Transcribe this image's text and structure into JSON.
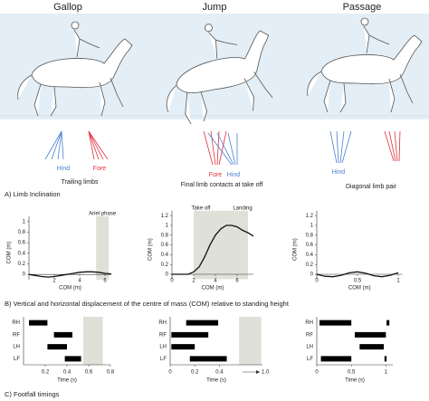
{
  "columns": [
    "Gallop",
    "Jump",
    "Passage"
  ],
  "limb_labels": {
    "gallop_hind": "Hind",
    "gallop_fore": "Fore",
    "gallop_caption": "Trailing limbs",
    "jump_fore": "Fore",
    "jump_hind": "Hind",
    "jump_caption": "Final limb contacts at take off",
    "passage_hind": "Hind",
    "passage_caption": "Diagonal limb pair"
  },
  "sections": [
    "A) Limb Inclination",
    "B) Vertical and horizontal displacement of the centre of mass (COM) relative to standing height",
    "C) Footfall timings"
  ],
  "chart_data": [
    {
      "type": "line",
      "ylabel": "COM (m)",
      "xlabel": "COM (m)",
      "color": "#111111",
      "x": [
        0,
        0.5,
        1,
        1.5,
        2,
        2.5,
        3,
        3.5,
        4,
        4.5,
        5,
        5.5,
        6,
        6.5
      ],
      "values": [
        0,
        -0.02,
        -0.04,
        -0.05,
        -0.04,
        -0.02,
        0,
        0.02,
        0.04,
        0.05,
        0.05,
        0.04,
        0.02,
        0.01
      ],
      "xlim": [
        0,
        6.5
      ],
      "xticks": [
        2,
        4,
        6
      ],
      "ylim": [
        -0.1,
        1.1
      ],
      "yticks": [
        0,
        0.2,
        0.4,
        0.6,
        0.8,
        1
      ],
      "shade": [
        5.3,
        6.3
      ],
      "shade_color": "#dfe0d8",
      "annotations": [
        "Ariel phase"
      ]
    },
    {
      "type": "line",
      "ylabel": "COM (m)",
      "xlabel": "COM (m)",
      "color": "#111111",
      "x": [
        0,
        0.5,
        1,
        1.5,
        2,
        2.5,
        3,
        3.5,
        4,
        4.5,
        5,
        5.5,
        6,
        6.5,
        7,
        7.5
      ],
      "values": [
        0,
        0,
        0,
        0,
        0.05,
        0.15,
        0.35,
        0.6,
        0.8,
        0.93,
        1.0,
        1.0,
        0.97,
        0.9,
        0.85,
        0.78
      ],
      "xlim": [
        0,
        7.5
      ],
      "xticks": [
        0,
        2,
        4,
        6
      ],
      "ylim": [
        -0.1,
        1.3
      ],
      "yticks": [
        0,
        0.2,
        0.4,
        0.6,
        0.8,
        1,
        1.2
      ],
      "shade": [
        2,
        7
      ],
      "shade_color": "#dfe0d8",
      "annotations": [
        "Take off",
        "Landing"
      ]
    },
    {
      "type": "line",
      "ylabel": "COM (m)",
      "xlabel": "COM (m)",
      "color": "#111111",
      "x": [
        0,
        0.1,
        0.2,
        0.3,
        0.4,
        0.5,
        0.6,
        0.7,
        0.8,
        0.9,
        1
      ],
      "values": [
        0,
        -0.04,
        -0.05,
        -0.02,
        0.03,
        0.05,
        0.02,
        -0.03,
        -0.05,
        -0.02,
        0.03
      ],
      "xlim": [
        0,
        1.05
      ],
      "xticks": [
        0,
        0.5,
        1
      ],
      "ylim": [
        -0.1,
        1.3
      ],
      "yticks": [
        0,
        0.2,
        0.4,
        0.6,
        0.8,
        1,
        1.2
      ]
    },
    {
      "type": "gantt",
      "xlabel": "Time (s)",
      "color": "#000000",
      "series": [
        {
          "name": "RH",
          "bars": [
            [
              0.05,
              0.22
            ]
          ]
        },
        {
          "name": "RF",
          "bars": [
            [
              0.28,
              0.45
            ]
          ]
        },
        {
          "name": "LH",
          "bars": [
            [
              0.22,
              0.4
            ]
          ]
        },
        {
          "name": "LF",
          "bars": [
            [
              0.38,
              0.53
            ]
          ]
        }
      ],
      "xlim": [
        0,
        0.8
      ],
      "xticks": [
        0.2,
        0.4,
        0.6,
        {
          "value": 0.8,
          "label": "0.8"
        }
      ],
      "shade": [
        0.55,
        0.73
      ],
      "shade_color": "#dfe0d8"
    },
    {
      "type": "gantt",
      "xlabel": "Time (s)",
      "color": "#000000",
      "series": [
        {
          "name": "RH",
          "bars": [
            [
              0.13,
              0.39
            ]
          ]
        },
        {
          "name": "RF",
          "bars": [
            [
              0.01,
              0.31
            ]
          ]
        },
        {
          "name": "LH",
          "bars": [
            [
              0.01,
              0.2
            ]
          ]
        },
        {
          "name": "LF",
          "bars": [
            [
              0.16,
              0.46
            ]
          ]
        }
      ],
      "xlim": [
        0,
        0.75
      ],
      "xticks": [
        0,
        0.2,
        0.4
      ],
      "annotations": [
        "1.0"
      ],
      "shade": [
        0.56,
        0.74
      ],
      "shade_color": "#dfe0d8"
    },
    {
      "type": "gantt",
      "xlabel": "Time (s)",
      "color": "#000000",
      "series": [
        {
          "name": "RH",
          "bars": [
            [
              0.04,
              0.5
            ],
            [
              1.01,
              1.05
            ]
          ]
        },
        {
          "name": "RF",
          "bars": [
            [
              0.55,
              1.0
            ]
          ]
        },
        {
          "name": "LH",
          "bars": [
            [
              0.62,
              0.97
            ]
          ]
        },
        {
          "name": "LF",
          "bars": [
            [
              0.06,
              0.5
            ],
            [
              0.98,
              1.01
            ]
          ]
        }
      ],
      "xlim": [
        0,
        1.1
      ],
      "xticks": [
        0,
        0.5,
        1
      ]
    }
  ]
}
